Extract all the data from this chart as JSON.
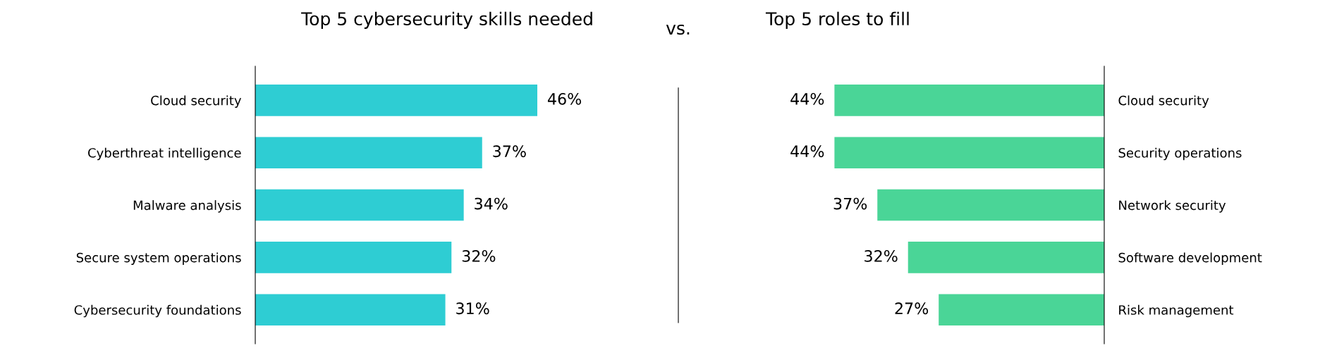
{
  "chart_data": [
    {
      "type": "bar",
      "orientation": "horizontal",
      "title": "Top 5 cybersecurity skills needed",
      "categories": [
        "Cloud security",
        "Cyberthreat intelligence",
        "Malware analysis",
        "Secure system operations",
        "Cybersecurity foundations"
      ],
      "values": [
        46,
        37,
        34,
        32,
        31
      ],
      "value_labels": [
        "46%",
        "37%",
        "34%",
        "32%",
        "31%"
      ],
      "color": "#2ecdd3",
      "tick_labels": "y",
      "grid": false,
      "legend": false
    },
    {
      "type": "other",
      "title": "vs."
    },
    {
      "type": "bar",
      "orientation": "horizontal",
      "title": "Top 5 roles to fill",
      "categories": [
        "Cloud security",
        "Security operations",
        "Network security",
        "Software development",
        "Risk management"
      ],
      "values": [
        44,
        44,
        37,
        32,
        27
      ],
      "value_labels": [
        "44%",
        "44%",
        "37%",
        "32%",
        "27%"
      ],
      "color": "#4ad597",
      "tick_labels": "y",
      "grid": false,
      "legend": false
    }
  ]
}
